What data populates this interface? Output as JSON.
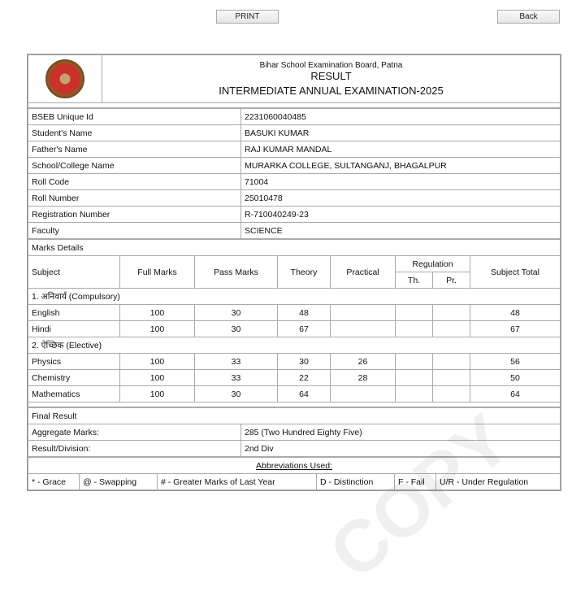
{
  "buttons": {
    "print": "PRINT",
    "back": "Back"
  },
  "header": {
    "board": "Bihar School Examination Board, Patna",
    "title": "RESULT",
    "exam": "INTERMEDIATE ANNUAL EXAMINATION-2025"
  },
  "student": [
    {
      "label": "BSEB Unique Id",
      "value": "2231060040485"
    },
    {
      "label": "Student's Name",
      "value": "BASUKI KUMAR"
    },
    {
      "label": "Father's Name",
      "value": "RAJ KUMAR MANDAL"
    },
    {
      "label": "School/College Name",
      "value": "MURARKA COLLEGE, SULTANGANJ, BHAGALPUR"
    },
    {
      "label": "Roll Code",
      "value": "71004"
    },
    {
      "label": "Roll Number",
      "value": "25010478"
    },
    {
      "label": "Registration Number",
      "value": "R-710040249-23"
    },
    {
      "label": "Faculty",
      "value": "SCIENCE"
    }
  ],
  "marks": {
    "title": "Marks Details",
    "columns": {
      "subject": "Subject",
      "full": "Full Marks",
      "pass": "Pass Marks",
      "theory": "Theory",
      "practical": "Practical",
      "regulation": "Regulation",
      "reg_th": "Th.",
      "reg_pr": "Pr.",
      "total": "Subject Total"
    },
    "groups": [
      {
        "name": "1. अनिवार्य (Compulsory)",
        "rows": [
          {
            "subject": "English",
            "full": "100",
            "pass": "30",
            "theory": "48",
            "practical": "",
            "th": "",
            "pr": "",
            "total": "48"
          },
          {
            "subject": "Hindi",
            "full": "100",
            "pass": "30",
            "theory": "67",
            "practical": "",
            "th": "",
            "pr": "",
            "total": "67"
          }
        ]
      },
      {
        "name": "2. ऐच्छिक (Elective)",
        "rows": [
          {
            "subject": "Physics",
            "full": "100",
            "pass": "33",
            "theory": "30",
            "practical": "26",
            "th": "",
            "pr": "",
            "total": "56"
          },
          {
            "subject": "Chemistry",
            "full": "100",
            "pass": "33",
            "theory": "22",
            "practical": "28",
            "th": "",
            "pr": "",
            "total": "50"
          },
          {
            "subject": "Mathematics",
            "full": "100",
            "pass": "30",
            "theory": "64",
            "practical": "",
            "th": "",
            "pr": "",
            "total": "64"
          }
        ]
      }
    ]
  },
  "final": {
    "title": "Final Result",
    "aggregate_label": "Aggregate Marks:",
    "aggregate_value": "285 (Two Hundred Eighty Five)",
    "division_label": "Result/Division:",
    "division_value": "2nd Div"
  },
  "abbreviations": {
    "title": "Abbreviations Used:",
    "items": [
      "* - Grace",
      "@ - Swapping",
      "# - Greater Marks of Last Year",
      "D - Distinction",
      "F - Fail",
      "U/R - Under Regulation"
    ]
  },
  "watermark": "COPY"
}
